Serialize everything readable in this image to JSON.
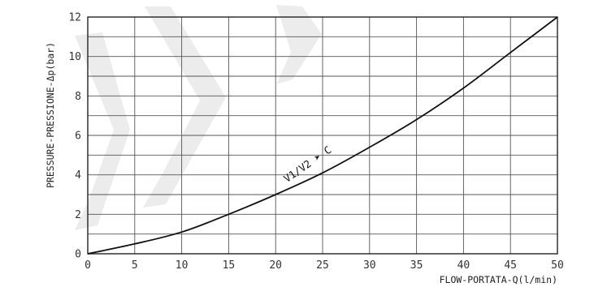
{
  "chart_data": {
    "type": "line",
    "xlabel": "FLOW-PORTATA-Q(l/min)",
    "ylabel": "PRESSURE-PRESSIONE-Δp(bar)",
    "xlim": [
      0,
      50
    ],
    "ylim": [
      0,
      12
    ],
    "x_ticks": [
      "0",
      "5",
      "10",
      "15",
      "20",
      "25",
      "30",
      "35",
      "40",
      "45",
      "50"
    ],
    "y_ticks": [
      "0",
      "2",
      "4",
      "6",
      "8",
      "10",
      "12"
    ],
    "grid": true,
    "series": [
      {
        "name": "V1/V2 ➤ C",
        "x": [
          0,
          5,
          10,
          15,
          20,
          25,
          30,
          35,
          40,
          45,
          50
        ],
        "y": [
          0,
          0.5,
          1.1,
          2.0,
          3.0,
          4.1,
          5.4,
          6.8,
          8.4,
          10.2,
          12.0
        ]
      }
    ],
    "colors": {
      "line": "#111111",
      "grid": "#555555",
      "frame": "#222222"
    }
  }
}
